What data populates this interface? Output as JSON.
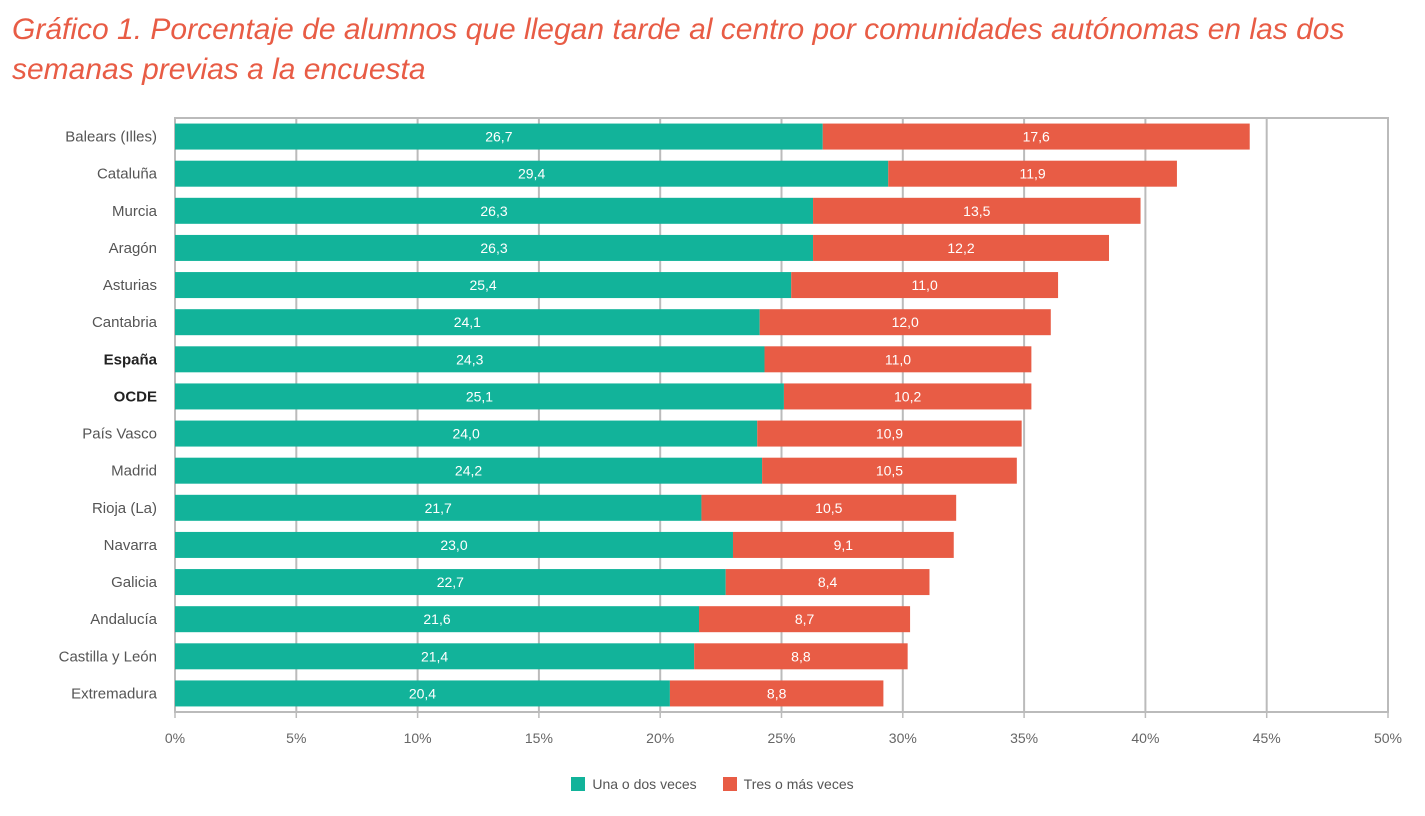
{
  "title": "Gráfico 1. Porcentaje de alumnos que llegan tarde al centro por comunidades autónomas en las dos semanas previas a la encuesta",
  "colors": {
    "series1": "#12b39a",
    "series2": "#e85c45",
    "grid": "#bbbbbb"
  },
  "chart_data": {
    "type": "bar",
    "orientation": "horizontal",
    "stacked": true,
    "categories": [
      "Balears (Illes)",
      "Cataluña",
      "Murcia",
      "Aragón",
      "Asturias",
      "Cantabria",
      "España",
      "OCDE",
      "País Vasco",
      "Madrid",
      "Rioja (La)",
      "Navarra",
      "Galicia",
      "Andalucía",
      "Castilla y León",
      "Extremadura"
    ],
    "bold_categories": [
      "España",
      "OCDE"
    ],
    "series": [
      {
        "name": "Una o dos veces",
        "values": [
          26.7,
          29.4,
          26.3,
          26.3,
          25.4,
          24.1,
          24.3,
          25.1,
          24.0,
          24.2,
          21.7,
          23.0,
          22.7,
          21.6,
          21.4,
          20.4
        ],
        "labels": [
          "26,7",
          "29,4",
          "26,3",
          "26,3",
          "25,4",
          "24,1",
          "24,3",
          "25,1",
          "24,0",
          "24,2",
          "21,7",
          "23,0",
          "22,7",
          "21,6",
          "21,4",
          "20,4"
        ]
      },
      {
        "name": "Tres o más veces",
        "values": [
          17.6,
          11.9,
          13.5,
          12.2,
          11.0,
          12.0,
          11.0,
          10.2,
          10.9,
          10.5,
          10.5,
          9.1,
          8.4,
          8.7,
          8.8,
          8.8
        ],
        "labels": [
          "17,6",
          "11,9",
          "13,5",
          "12,2",
          "11,0",
          "12,0",
          "11,0",
          "10,2",
          "10,9",
          "10,5",
          "10,5",
          "9,1",
          "8,4",
          "8,7",
          "8,8",
          "8,8"
        ]
      }
    ],
    "xlim": [
      0,
      50
    ],
    "xticks": [
      0,
      5,
      10,
      15,
      20,
      25,
      30,
      35,
      40,
      45,
      50
    ],
    "xtick_labels": [
      "0%",
      "5%",
      "10%",
      "15%",
      "20%",
      "25%",
      "30%",
      "35%",
      "40%",
      "45%",
      "50%"
    ],
    "grid": true,
    "legend_position": "bottom"
  }
}
